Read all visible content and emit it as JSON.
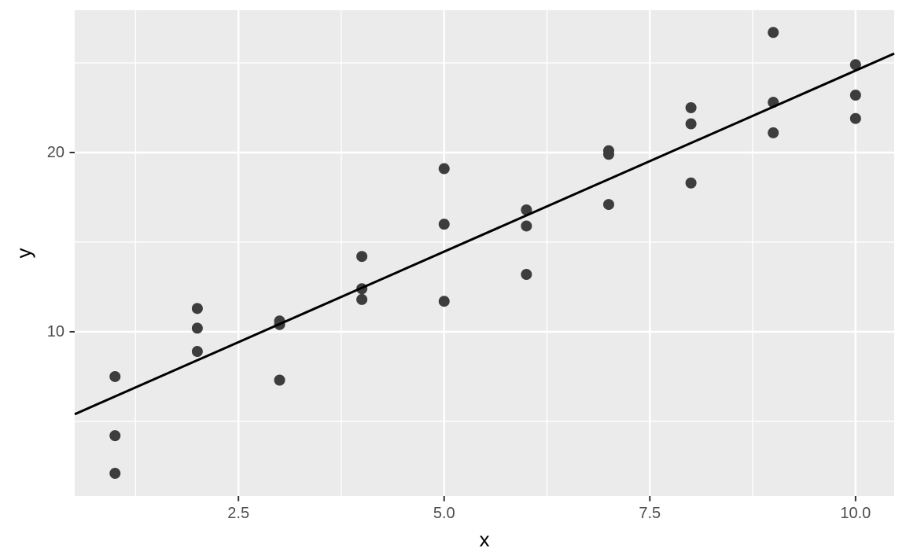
{
  "chart_data": {
    "type": "scatter",
    "title": "",
    "xlabel": "x",
    "ylabel": "y",
    "grid": true,
    "legend": "none",
    "x_range": [
      0.51,
      10.47
    ],
    "y_range": [
      0.83,
      27.94
    ],
    "x_ticks": {
      "values": [
        2.5,
        5.0,
        7.5,
        10.0
      ],
      "labels": [
        "2.5",
        "5.0",
        "7.5",
        "10.0"
      ]
    },
    "y_ticks": {
      "values": [
        10,
        20
      ],
      "labels": [
        "10",
        "20"
      ]
    },
    "x_minor": [
      1.25,
      3.75,
      6.25,
      8.75
    ],
    "y_minor": [
      5,
      15,
      25
    ],
    "points": [
      [
        1,
        7.5
      ],
      [
        1,
        4.2
      ],
      [
        1,
        2.1
      ],
      [
        2,
        11.3
      ],
      [
        2,
        10.2
      ],
      [
        2,
        8.9
      ],
      [
        3,
        10.6
      ],
      [
        3,
        10.4
      ],
      [
        3,
        7.3
      ],
      [
        4,
        14.2
      ],
      [
        4,
        12.4
      ],
      [
        4,
        11.8
      ],
      [
        5,
        19.1
      ],
      [
        5,
        16.0
      ],
      [
        5,
        11.7
      ],
      [
        6,
        16.8
      ],
      [
        6,
        15.9
      ],
      [
        6,
        13.2
      ],
      [
        7,
        20.1
      ],
      [
        7,
        19.9
      ],
      [
        7,
        17.1
      ],
      [
        8,
        22.5
      ],
      [
        8,
        21.6
      ],
      [
        8,
        18.3
      ],
      [
        9,
        26.7
      ],
      [
        9,
        22.8
      ],
      [
        9,
        21.1
      ],
      [
        10,
        24.9
      ],
      [
        10,
        23.2
      ],
      [
        10,
        21.9
      ]
    ],
    "trend_line": {
      "type": "linear",
      "slope": 2.02,
      "intercept": 4.37
    },
    "colors": {
      "plot_bg": "#FFFFFF",
      "panel_bg": "#EBEBEB",
      "grid": "#FFFFFF",
      "point": "#3D3D3D",
      "trend": "#000000",
      "tick_mark": "#333333",
      "tick_text": "#4D4D4D",
      "axis_title": "#000000"
    }
  }
}
